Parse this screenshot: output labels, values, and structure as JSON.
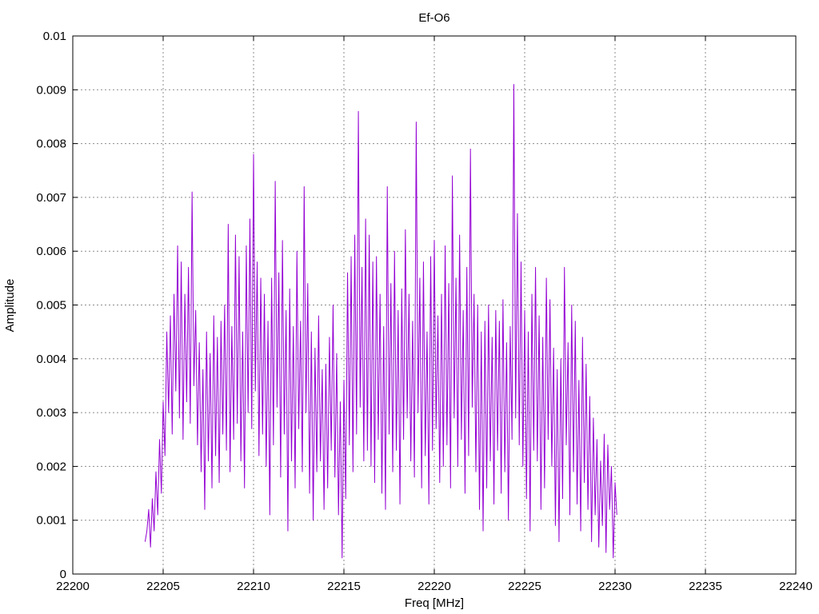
{
  "chart_data": {
    "type": "line",
    "title": "Ef-O6",
    "xlabel": "Freq [MHz]",
    "ylabel": "Amplitude",
    "xlim": [
      22200,
      22240
    ],
    "ylim": [
      0,
      0.01
    ],
    "x_ticks": [
      "22200",
      "22205",
      "22210",
      "22215",
      "22220",
      "22225",
      "22230",
      "22235",
      "22240"
    ],
    "y_ticks": [
      "0",
      "0.001",
      "0.002",
      "0.003",
      "0.004",
      "0.005",
      "0.006",
      "0.007",
      "0.008",
      "0.009",
      "0.01"
    ],
    "grid": true,
    "line_color": "#9400d3",
    "series": [
      {
        "x_start": 22204.0,
        "x_step": 0.1,
        "values": [
          0.0006,
          0.0008,
          0.0012,
          0.0005,
          0.0014,
          0.0008,
          0.0019,
          0.0011,
          0.0025,
          0.0015,
          0.0032,
          0.0022,
          0.0045,
          0.003,
          0.0048,
          0.0026,
          0.0052,
          0.0034,
          0.0061,
          0.0029,
          0.0058,
          0.0025,
          0.0052,
          0.0032,
          0.0057,
          0.0028,
          0.0071,
          0.0035,
          0.0049,
          0.0024,
          0.0043,
          0.0019,
          0.0038,
          0.0012,
          0.0045,
          0.0021,
          0.0041,
          0.0016,
          0.0048,
          0.0022,
          0.0044,
          0.0017,
          0.0047,
          0.0026,
          0.005,
          0.0023,
          0.0065,
          0.0019,
          0.0046,
          0.0025,
          0.0063,
          0.0028,
          0.0059,
          0.0021,
          0.0045,
          0.0016,
          0.0061,
          0.003,
          0.0066,
          0.0027,
          0.0078,
          0.0034,
          0.0058,
          0.0022,
          0.0055,
          0.0026,
          0.0052,
          0.002,
          0.0047,
          0.0011,
          0.0055,
          0.0024,
          0.0073,
          0.0031,
          0.0056,
          0.0018,
          0.0062,
          0.0026,
          0.0049,
          0.0008,
          0.0053,
          0.0021,
          0.0046,
          0.0016,
          0.006,
          0.0027,
          0.0047,
          0.0019,
          0.0072,
          0.003,
          0.0054,
          0.0015,
          0.0045,
          0.001,
          0.0042,
          0.0019,
          0.0048,
          0.0021,
          0.0038,
          0.0012,
          0.0039,
          0.0016,
          0.0044,
          0.0023,
          0.005,
          0.0018,
          0.0041,
          0.0011,
          0.0032,
          0.0003,
          0.0036,
          0.0014,
          0.0056,
          0.0024,
          0.0059,
          0.0019,
          0.0063,
          0.0026,
          0.0086,
          0.0031,
          0.0057,
          0.0021,
          0.0066,
          0.0023,
          0.0063,
          0.002,
          0.0058,
          0.0017,
          0.0059,
          0.0025,
          0.0052,
          0.0015,
          0.0046,
          0.0012,
          0.0072,
          0.0026,
          0.0054,
          0.0019,
          0.006,
          0.0023,
          0.0049,
          0.0013,
          0.0053,
          0.0025,
          0.0064,
          0.0029,
          0.0052,
          0.0021,
          0.0047,
          0.0018,
          0.0084,
          0.003,
          0.0055,
          0.0016,
          0.0058,
          0.0022,
          0.0045,
          0.0013,
          0.0059,
          0.0023,
          0.0062,
          0.0027,
          0.0048,
          0.0017,
          0.0052,
          0.002,
          0.0061,
          0.0024,
          0.0054,
          0.0016,
          0.0074,
          0.0029,
          0.0055,
          0.002,
          0.0063,
          0.0025,
          0.0049,
          0.0015,
          0.0057,
          0.0022,
          0.0079,
          0.0031,
          0.0052,
          0.0019,
          0.005,
          0.0012,
          0.0045,
          0.0008,
          0.0047,
          0.0016,
          0.005,
          0.0021,
          0.0044,
          0.0013,
          0.0049,
          0.0023,
          0.0047,
          0.0015,
          0.0051,
          0.0019,
          0.0043,
          0.001,
          0.0046,
          0.0025,
          0.0091,
          0.0029,
          0.0067,
          0.0024,
          0.0058,
          0.002,
          0.0049,
          0.0014,
          0.0045,
          0.0008,
          0.0052,
          0.0023,
          0.0057,
          0.0021,
          0.0048,
          0.0012,
          0.0044,
          0.0016,
          0.0055,
          0.0025,
          0.0051,
          0.002,
          0.0042,
          0.0009,
          0.0038,
          0.0006,
          0.004,
          0.0014,
          0.0057,
          0.0024,
          0.0043,
          0.0011,
          0.005,
          0.0019,
          0.0047,
          0.0013,
          0.0036,
          0.0008,
          0.0044,
          0.0017,
          0.0039,
          0.0012,
          0.0033,
          0.0006,
          0.0029,
          0.0011,
          0.0025,
          0.0005,
          0.0021,
          0.0009,
          0.0026,
          0.0004,
          0.0024,
          0.0012,
          0.002,
          0.0003,
          0.0017,
          0.0011
        ]
      }
    ]
  }
}
